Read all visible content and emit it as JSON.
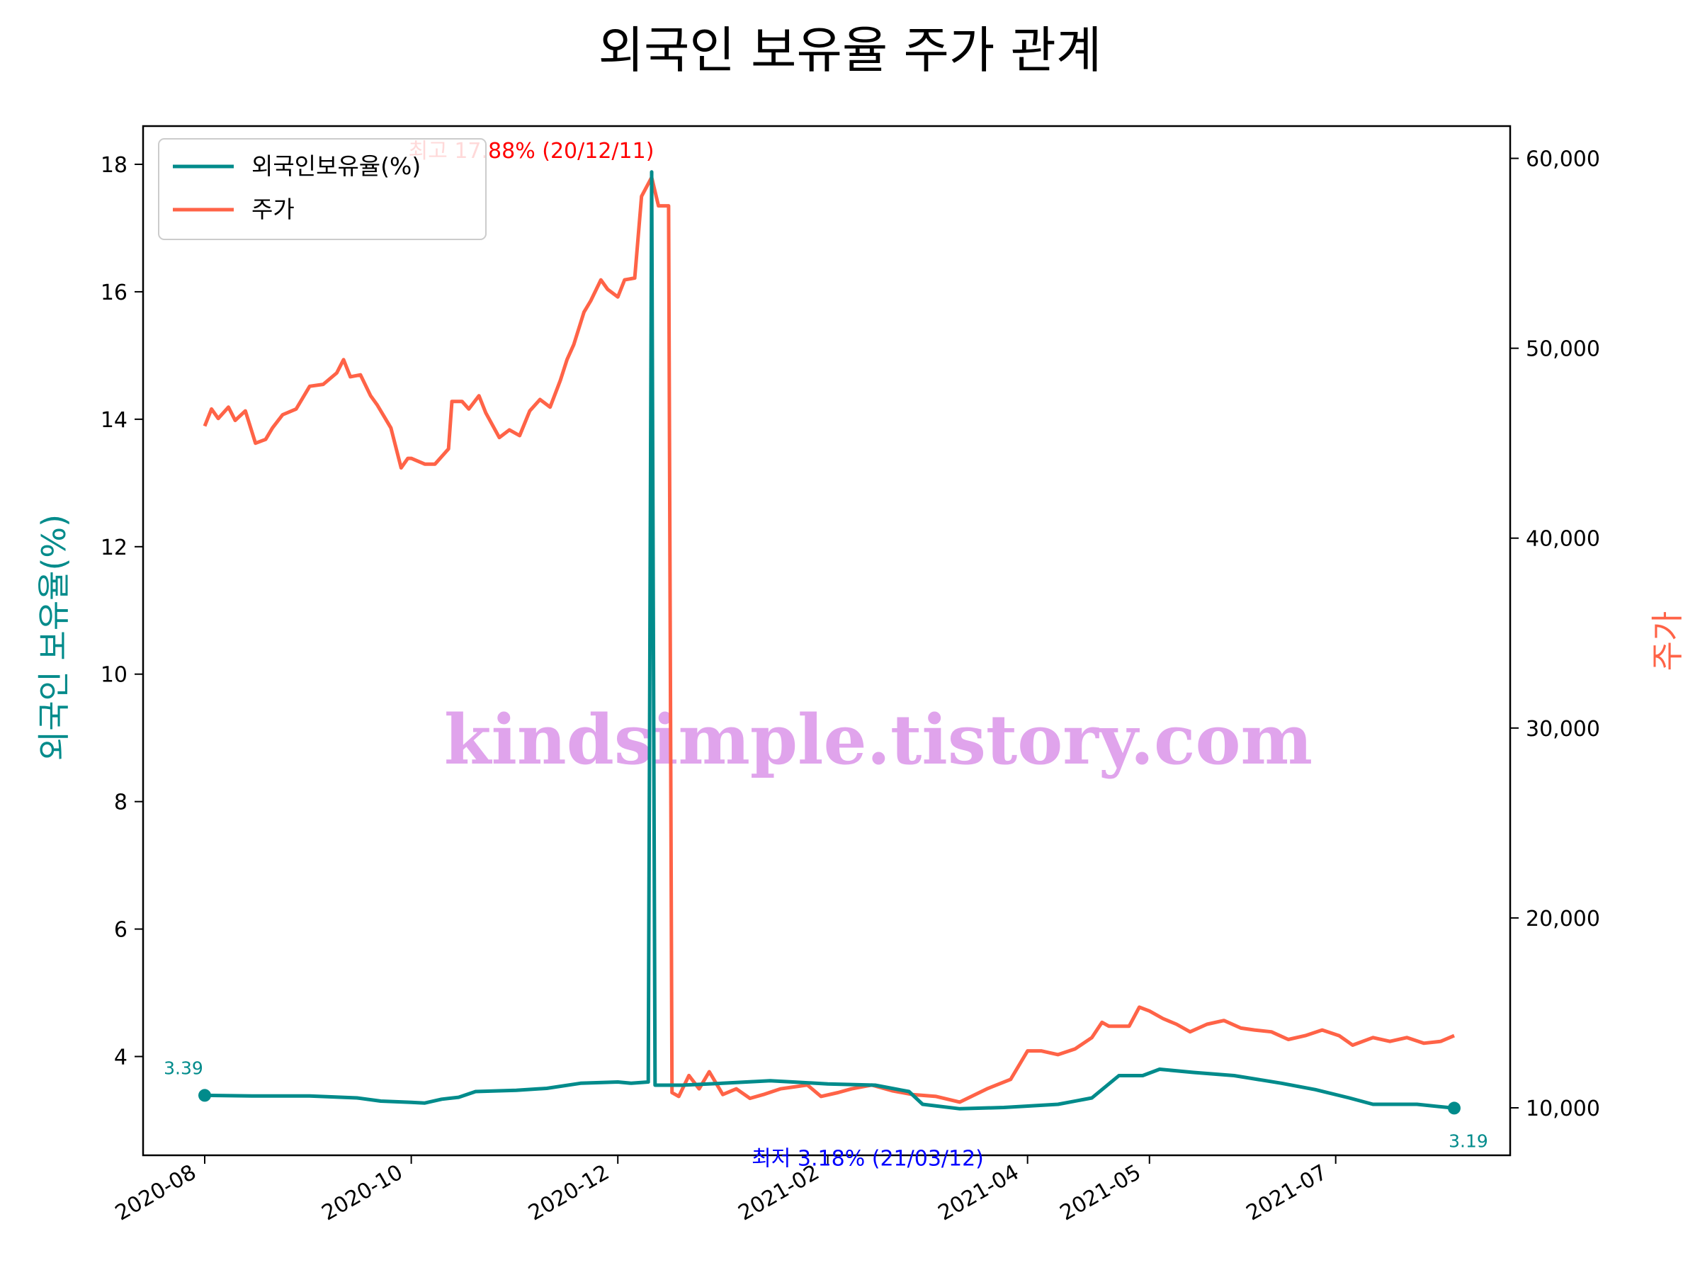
{
  "colors": {
    "foreign": "#008b8b",
    "price": "#ff6347",
    "max_annotation": "#ff0000",
    "min_annotation": "#0000ff",
    "watermark": "#e0a4ec"
  },
  "chart_data": {
    "type": "line",
    "title": "외국인 보유율 주가 관계",
    "ylabel": "외국인 보유율(%)",
    "y2label": "주가",
    "ylim": [
      2.45,
      18.6
    ],
    "y2lim": [
      7500,
      61700
    ],
    "yticks": [
      "4",
      "6",
      "8",
      "10",
      "12",
      "14",
      "16",
      "18"
    ],
    "y2ticks": [
      "10,000",
      "20,000",
      "30,000",
      "40,000",
      "50,000",
      "60,000"
    ],
    "xticks": [
      "2020-08",
      "2020-10",
      "2020-12",
      "2021-02",
      "2021-04",
      "2021-05",
      "2021-07"
    ],
    "legend_position": "upper-left",
    "series": [
      {
        "name": "외국인보유율(%)",
        "axis": "left",
        "points": [
          [
            "2020-08-01",
            3.39
          ],
          [
            "2020-08-15",
            3.38
          ],
          [
            "2020-09-01",
            3.38
          ],
          [
            "2020-09-15",
            3.35
          ],
          [
            "2020-09-22",
            3.3
          ],
          [
            "2020-10-01",
            3.28
          ],
          [
            "2020-10-05",
            3.27
          ],
          [
            "2020-10-10",
            3.33
          ],
          [
            "2020-10-15",
            3.36
          ],
          [
            "2020-10-20",
            3.45
          ],
          [
            "2020-11-01",
            3.47
          ],
          [
            "2020-11-10",
            3.5
          ],
          [
            "2020-11-20",
            3.58
          ],
          [
            "2020-12-01",
            3.6
          ],
          [
            "2020-12-05",
            3.58
          ],
          [
            "2020-12-10",
            3.6
          ],
          [
            "2020-12-11",
            17.88
          ],
          [
            "2020-12-12",
            3.55
          ],
          [
            "2020-12-20",
            3.55
          ],
          [
            "2021-01-01",
            3.58
          ],
          [
            "2021-01-15",
            3.62
          ],
          [
            "2021-02-01",
            3.57
          ],
          [
            "2021-02-15",
            3.55
          ],
          [
            "2021-02-25",
            3.45
          ],
          [
            "2021-03-01",
            3.25
          ],
          [
            "2021-03-12",
            3.18
          ],
          [
            "2021-03-25",
            3.2
          ],
          [
            "2021-04-10",
            3.25
          ],
          [
            "2021-04-20",
            3.35
          ],
          [
            "2021-04-28",
            3.7
          ],
          [
            "2021-05-05",
            3.7
          ],
          [
            "2021-05-10",
            3.8
          ],
          [
            "2021-05-20",
            3.75
          ],
          [
            "2021-06-01",
            3.7
          ],
          [
            "2021-06-15",
            3.58
          ],
          [
            "2021-06-25",
            3.48
          ],
          [
            "2021-07-05",
            3.35
          ],
          [
            "2021-07-12",
            3.25
          ],
          [
            "2021-07-25",
            3.25
          ],
          [
            "2021-08-05",
            3.19
          ]
        ]
      },
      {
        "name": "주가",
        "axis": "right",
        "points": [
          [
            "2020-08-01",
            45900
          ],
          [
            "2020-08-03",
            46800
          ],
          [
            "2020-08-05",
            46300
          ],
          [
            "2020-08-08",
            46900
          ],
          [
            "2020-08-10",
            46200
          ],
          [
            "2020-08-13",
            46700
          ],
          [
            "2020-08-16",
            45000
          ],
          [
            "2020-08-19",
            45200
          ],
          [
            "2020-08-21",
            45800
          ],
          [
            "2020-08-24",
            46500
          ],
          [
            "2020-08-28",
            46800
          ],
          [
            "2020-09-01",
            48000
          ],
          [
            "2020-09-05",
            48100
          ],
          [
            "2020-09-09",
            48700
          ],
          [
            "2020-09-11",
            49400
          ],
          [
            "2020-09-13",
            48500
          ],
          [
            "2020-09-16",
            48600
          ],
          [
            "2020-09-19",
            47500
          ],
          [
            "2020-09-21",
            47000
          ],
          [
            "2020-09-23",
            46400
          ],
          [
            "2020-09-25",
            45800
          ],
          [
            "2020-09-28",
            43700
          ],
          [
            "2020-09-30",
            44200
          ],
          [
            "2020-10-01",
            44200
          ],
          [
            "2020-10-05",
            43900
          ],
          [
            "2020-10-08",
            43900
          ],
          [
            "2020-10-12",
            44700
          ],
          [
            "2020-10-13",
            47200
          ],
          [
            "2020-10-16",
            47200
          ],
          [
            "2020-10-18",
            46800
          ],
          [
            "2020-10-21",
            47500
          ],
          [
            "2020-10-23",
            46600
          ],
          [
            "2020-10-27",
            45300
          ],
          [
            "2020-10-30",
            45700
          ],
          [
            "2020-11-02",
            45400
          ],
          [
            "2020-11-05",
            46700
          ],
          [
            "2020-11-08",
            47300
          ],
          [
            "2020-11-11",
            46900
          ],
          [
            "2020-11-14",
            48300
          ],
          [
            "2020-11-16",
            49400
          ],
          [
            "2020-11-18",
            50200
          ],
          [
            "2020-11-21",
            51900
          ],
          [
            "2020-11-23",
            52500
          ],
          [
            "2020-11-26",
            53600
          ],
          [
            "2020-11-28",
            53100
          ],
          [
            "2020-12-01",
            52700
          ],
          [
            "2020-12-03",
            53600
          ],
          [
            "2020-12-06",
            53700
          ],
          [
            "2020-12-08",
            58000
          ],
          [
            "2020-12-11",
            59000
          ],
          [
            "2020-12-13",
            57500
          ],
          [
            "2020-12-16",
            57500
          ],
          [
            "2020-12-17",
            10800
          ],
          [
            "2020-12-19",
            10600
          ],
          [
            "2020-12-22",
            11700
          ],
          [
            "2020-12-25",
            11000
          ],
          [
            "2020-12-28",
            11900
          ],
          [
            "2021-01-01",
            10700
          ],
          [
            "2021-01-05",
            11000
          ],
          [
            "2021-01-09",
            10500
          ],
          [
            "2021-01-13",
            10700
          ],
          [
            "2021-01-18",
            11000
          ],
          [
            "2021-01-22",
            11100
          ],
          [
            "2021-01-26",
            11200
          ],
          [
            "2021-01-30",
            10600
          ],
          [
            "2021-02-04",
            10800
          ],
          [
            "2021-02-08",
            11000
          ],
          [
            "2021-02-14",
            11200
          ],
          [
            "2021-02-20",
            10900
          ],
          [
            "2021-02-26",
            10700
          ],
          [
            "2021-03-05",
            10600
          ],
          [
            "2021-03-12",
            10300
          ],
          [
            "2021-03-20",
            11000
          ],
          [
            "2021-03-27",
            11500
          ],
          [
            "2021-04-01",
            13000
          ],
          [
            "2021-04-05",
            13000
          ],
          [
            "2021-04-10",
            12800
          ],
          [
            "2021-04-15",
            13100
          ],
          [
            "2021-04-20",
            13700
          ],
          [
            "2021-04-23",
            14500
          ],
          [
            "2021-04-25",
            14300
          ],
          [
            "2021-05-01",
            14300
          ],
          [
            "2021-05-04",
            15300
          ],
          [
            "2021-05-07",
            15100
          ],
          [
            "2021-05-11",
            14700
          ],
          [
            "2021-05-15",
            14400
          ],
          [
            "2021-05-19",
            14000
          ],
          [
            "2021-05-24",
            14400
          ],
          [
            "2021-05-29",
            14600
          ],
          [
            "2021-06-03",
            14200
          ],
          [
            "2021-06-07",
            14100
          ],
          [
            "2021-06-12",
            14000
          ],
          [
            "2021-06-17",
            13600
          ],
          [
            "2021-06-22",
            13800
          ],
          [
            "2021-06-27",
            14100
          ],
          [
            "2021-07-02",
            13800
          ],
          [
            "2021-07-06",
            13300
          ],
          [
            "2021-07-12",
            13700
          ],
          [
            "2021-07-17",
            13500
          ],
          [
            "2021-07-22",
            13700
          ],
          [
            "2021-07-27",
            13400
          ],
          [
            "2021-08-01",
            13500
          ],
          [
            "2021-08-05",
            13800
          ]
        ]
      }
    ],
    "annotations": {
      "max": "최고 17.88% (20/12/11)",
      "min": "최저 3.18% (21/03/12)",
      "start_value": "3.39",
      "end_value": "3.19"
    }
  },
  "watermark": "kindsimple.tistory.com"
}
